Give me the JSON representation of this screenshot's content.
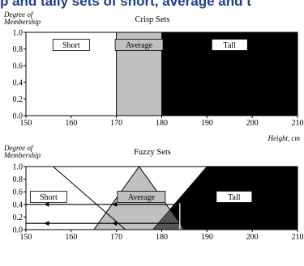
{
  "header_text": "p and tally sets of short, average and t",
  "chart_data": [
    {
      "type": "area",
      "title": "Crisp Sets",
      "ylabel": "Degree of Membership",
      "xlabel": "Height, cm",
      "xlim": [
        150,
        210
      ],
      "ylim": [
        0,
        1
      ],
      "x_ticks": [
        "150",
        "160",
        "170",
        "180",
        "190",
        "200",
        "210"
      ],
      "y_ticks": [
        "0.0",
        "0.2",
        "0.4",
        "0.6",
        "0.8",
        "1.0"
      ],
      "grid": false,
      "sets": [
        {
          "name": "Short",
          "color": "#ffffff",
          "range": [
            150,
            170
          ]
        },
        {
          "name": "Average",
          "color": "#c0c0c0",
          "range": [
            170,
            180
          ]
        },
        {
          "name": "Tall",
          "color": "#000000",
          "range": [
            180,
            210
          ]
        }
      ]
    },
    {
      "type": "area",
      "title": "Fuzzy Sets",
      "ylabel": "Degree of Membership",
      "xlim": [
        150,
        210
      ],
      "ylim": [
        0,
        1
      ],
      "x_ticks": [
        "150",
        "160",
        "170",
        "180",
        "190",
        "200",
        "210"
      ],
      "y_ticks": [
        "0.0",
        "0.2",
        "0.4",
        "0.6",
        "0.8",
        "1.0"
      ],
      "grid": false,
      "sets": [
        {
          "name": "Short",
          "color": "#ffffff",
          "points": [
            [
              150,
              1
            ],
            [
              156,
              1
            ],
            [
              172,
              0
            ]
          ]
        },
        {
          "name": "Average",
          "color": "#c0c0c0",
          "points": [
            [
              165,
              0
            ],
            [
              175,
              1
            ],
            [
              185,
              0
            ]
          ]
        },
        {
          "name": "Tall",
          "color": "#000000",
          "points": [
            [
              178,
              0
            ],
            [
              190,
              1
            ],
            [
              210,
              1
            ],
            [
              210,
              0
            ]
          ]
        }
      ],
      "arrows": [
        {
          "from_x": 184,
          "y": 0.4
        },
        {
          "from_x": 184,
          "y": 0.1
        }
      ],
      "marker_x": 184
    }
  ]
}
